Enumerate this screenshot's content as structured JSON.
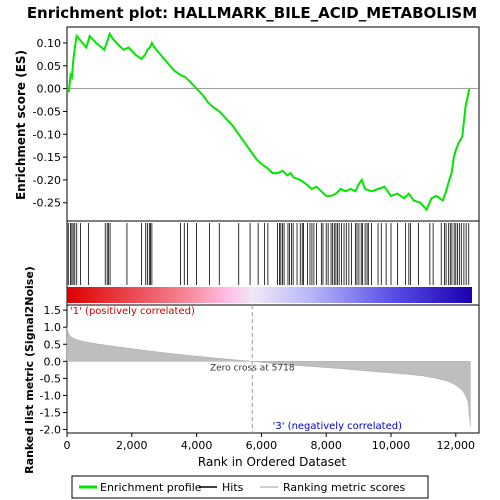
{
  "title": "Enrichment plot: HALLMARK_BILE_ACID_METABOLISM",
  "colors": {
    "es_line": "#00e600",
    "hits": "#000000",
    "metric_fill": "#bebebe",
    "pos_label": "#cc0000",
    "neg_label": "#0000cc",
    "zero_line": "#808080"
  },
  "chart_data": [
    {
      "type": "line",
      "panel": "enrichment-score",
      "ylabel": "Enrichment score (ES)",
      "xlim": [
        0,
        12500
      ],
      "ylim": [
        -0.29,
        0.135
      ],
      "yticks": [
        "0.10",
        "0.05",
        "0.00",
        "-0.05",
        "-0.10",
        "-0.15",
        "-0.20",
        "-0.25"
      ],
      "ytick_values": [
        0.1,
        0.05,
        0.0,
        -0.05,
        -0.1,
        -0.15,
        -0.2,
        -0.25
      ],
      "grid": false,
      "series": [
        {
          "name": "Enrichment profile",
          "x": [
            0,
            60,
            110,
            150,
            190,
            240,
            300,
            420,
            600,
            700,
            900,
            1150,
            1250,
            1320,
            1400,
            1600,
            1750,
            1900,
            2100,
            2300,
            2420,
            2480,
            2560,
            2620,
            2700,
            3000,
            3300,
            3500,
            3650,
            3800,
            4000,
            4200,
            4350,
            4500,
            4700,
            4900,
            5100,
            5300,
            5500,
            5700,
            5850,
            6000,
            6200,
            6350,
            6500,
            6650,
            6800,
            6900,
            7000,
            7200,
            7400,
            7550,
            7700,
            7850,
            8000,
            8150,
            8300,
            8450,
            8600,
            8750,
            8900,
            9000,
            9100,
            9200,
            9400,
            9600,
            9800,
            10000,
            10200,
            10400,
            10550,
            10700,
            10900,
            11100,
            11250,
            11400,
            11600,
            11700,
            11800,
            11870,
            11940,
            12000,
            12080,
            12200,
            12300,
            12420
          ],
          "y": [
            0.0,
            -0.005,
            0.03,
            0.025,
            0.06,
            0.09,
            0.115,
            0.105,
            0.09,
            0.115,
            0.1,
            0.085,
            0.105,
            0.12,
            0.11,
            0.095,
            0.085,
            0.09,
            0.075,
            0.065,
            0.075,
            0.085,
            0.09,
            0.1,
            0.09,
            0.065,
            0.04,
            0.03,
            0.025,
            0.015,
            0.0,
            -0.015,
            -0.03,
            -0.04,
            -0.05,
            -0.065,
            -0.08,
            -0.1,
            -0.12,
            -0.14,
            -0.155,
            -0.165,
            -0.175,
            -0.185,
            -0.185,
            -0.18,
            -0.19,
            -0.185,
            -0.195,
            -0.2,
            -0.21,
            -0.22,
            -0.215,
            -0.225,
            -0.235,
            -0.235,
            -0.23,
            -0.22,
            -0.225,
            -0.22,
            -0.225,
            -0.21,
            -0.2,
            -0.22,
            -0.225,
            -0.22,
            -0.215,
            -0.235,
            -0.23,
            -0.24,
            -0.23,
            -0.245,
            -0.25,
            -0.265,
            -0.24,
            -0.235,
            -0.245,
            -0.225,
            -0.2,
            -0.185,
            -0.15,
            -0.135,
            -0.12,
            -0.105,
            -0.04,
            0.0
          ]
        }
      ]
    },
    {
      "type": "scatter",
      "panel": "hits",
      "series": [
        {
          "name": "Hits",
          "x": [
            40,
            110,
            150,
            190,
            240,
            300,
            420,
            660,
            1180,
            1240,
            1280,
            1330,
            1850,
            2300,
            2430,
            2480,
            2540,
            2580,
            2620,
            3500,
            3620,
            3720,
            4000,
            4400,
            4700,
            5300,
            5650,
            5900,
            6100,
            6200,
            6500,
            6560,
            6600,
            6650,
            6700,
            6820,
            6870,
            6930,
            6980,
            7100,
            7200,
            7260,
            7300,
            7420,
            7500,
            7560,
            7620,
            7700,
            7850,
            7900,
            8000,
            8060,
            8150,
            8200,
            8250,
            8300,
            8350,
            8400,
            8470,
            8550,
            8620,
            8700,
            8780,
            8900,
            8950,
            9010,
            9080,
            9120,
            9200,
            9260,
            9300,
            9400,
            9600,
            9700,
            9850,
            10000,
            10200,
            10450,
            10550,
            10600,
            10850,
            11200,
            11300,
            11550,
            11650,
            11700,
            11780,
            11830,
            11880,
            11950,
            12000,
            12050,
            12110,
            12170,
            12250,
            12320,
            12400
          ]
        }
      ]
    },
    {
      "type": "area",
      "panel": "ranked-metric",
      "xlabel": "Rank in Ordered Dataset",
      "ylabel": "Ranked list metric (Signal2Noise)",
      "xlim": [
        0,
        12500
      ],
      "ylim": [
        -2.1,
        1.65
      ],
      "xticks": [
        "0",
        "2,000",
        "4,000",
        "6,000",
        "8,000",
        "10,000",
        "12,000"
      ],
      "xtick_values": [
        0,
        2000,
        4000,
        6000,
        8000,
        10000,
        12000
      ],
      "yticks": [
        "1.5",
        "1.0",
        "0.5",
        "0.0",
        "-0.5",
        "-1.0",
        "-1.5",
        "-2.0"
      ],
      "ytick_values": [
        1.5,
        1.0,
        0.5,
        0.0,
        -0.5,
        -1.0,
        -1.5,
        -2.0
      ],
      "series": [
        {
          "name": "Ranking metric scores",
          "x": [
            0,
            20,
            60,
            120,
            250,
            500,
            1000,
            2000,
            3000,
            4000,
            5000,
            5718,
            6500,
            7500,
            8500,
            9500,
            10500,
            11000,
            11500,
            11800,
            12000,
            12200,
            12300,
            12380,
            12420,
            12450
          ],
          "y": [
            1.0,
            0.9,
            0.8,
            0.72,
            0.65,
            0.58,
            0.5,
            0.37,
            0.25,
            0.15,
            0.06,
            0.0,
            -0.08,
            -0.15,
            -0.22,
            -0.3,
            -0.38,
            -0.43,
            -0.52,
            -0.6,
            -0.7,
            -0.85,
            -1.0,
            -1.2,
            -1.6,
            -1.9
          ]
        }
      ],
      "annotations": {
        "zero_cross": "Zero cross at 5718",
        "zero_cross_x": 5718,
        "positive": "'1' (positively correlated)",
        "negative": "'3' (negatively correlated)"
      }
    }
  ],
  "legend": {
    "items": [
      {
        "label": "Enrichment profile",
        "color": "#00e600"
      },
      {
        "label": "Hits",
        "color": "#000000"
      },
      {
        "label": "Ranking metric scores",
        "color": "#bebebe"
      }
    ]
  }
}
